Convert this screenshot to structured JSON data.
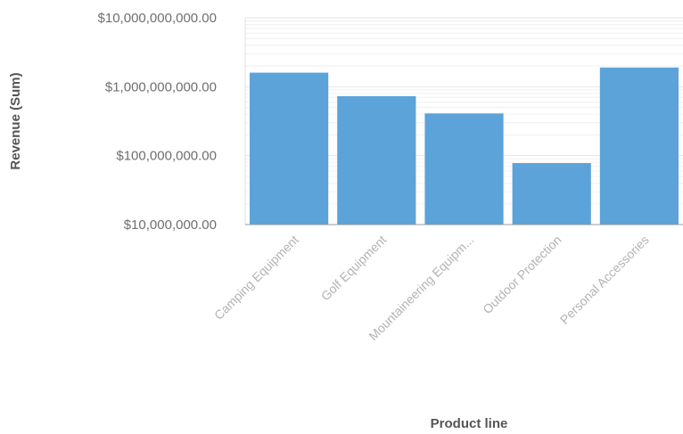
{
  "chart_data": {
    "type": "bar",
    "categories": [
      "Camping Equipment",
      "Golf Equipment",
      "Mountaineering Equipm...",
      "Outdoor Protection",
      "Personal Accessories"
    ],
    "series": [
      {
        "values": [
          1600000000,
          730000000,
          410000000,
          78000000,
          1900000000
        ]
      }
    ],
    "xlabel": "Product line",
    "ylabel": "Revenue (Sum)",
    "yscale": "log",
    "ylim": [
      10000000,
      10000000000
    ],
    "yticks": [
      10000000,
      100000000,
      1000000000,
      10000000000
    ],
    "ytick_labels": [
      "$10,000,000.00",
      "$100,000,000.00",
      "$1,000,000,000.00",
      "$10,000,000,000.00"
    ],
    "grid": true,
    "legend": "none",
    "bar_color": "#5ba3d9"
  }
}
